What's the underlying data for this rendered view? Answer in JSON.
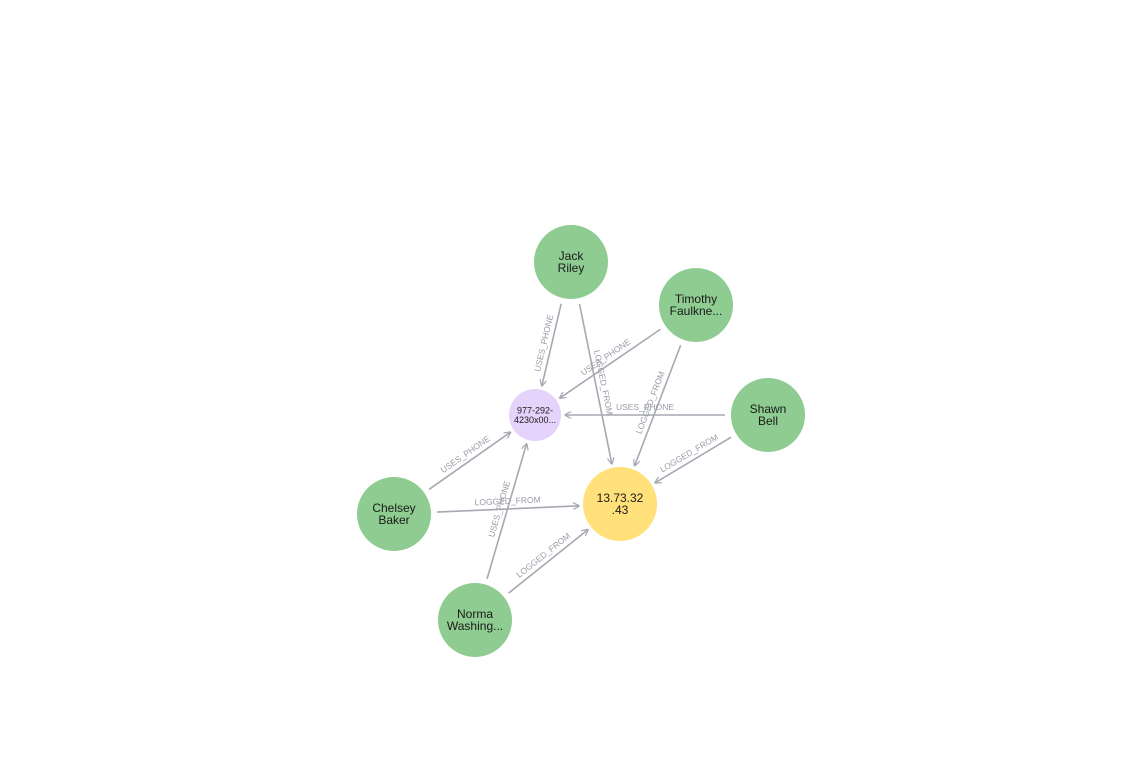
{
  "colors": {
    "person": "#8ecc91",
    "phone": "#e5d3fb",
    "ip": "#ffe07a",
    "edge": "#a6a9b2",
    "edge_label": "#9a9da6"
  },
  "nodes": [
    {
      "id": "jack",
      "type": "person",
      "lines": [
        "Jack",
        "Riley"
      ]
    },
    {
      "id": "timothy",
      "type": "person",
      "lines": [
        "Timothy",
        "Faulkne..."
      ]
    },
    {
      "id": "shawn",
      "type": "person",
      "lines": [
        "Shawn",
        "Bell"
      ]
    },
    {
      "id": "chelsey",
      "type": "person",
      "lines": [
        "Chelsey",
        "Baker"
      ]
    },
    {
      "id": "norma",
      "type": "person",
      "lines": [
        "Norma",
        "Washing..."
      ]
    },
    {
      "id": "phone",
      "type": "phone",
      "lines": [
        "977-292-",
        "4230x00..."
      ]
    },
    {
      "id": "ip",
      "type": "ip",
      "lines": [
        "13.73.32",
        ".43"
      ]
    }
  ],
  "edges": [
    {
      "from": "jack",
      "to": "phone",
      "label": "USES_PHONE"
    },
    {
      "from": "jack",
      "to": "ip",
      "label": "LOGGED_FROM"
    },
    {
      "from": "timothy",
      "to": "phone",
      "label": "USES_PHONE"
    },
    {
      "from": "timothy",
      "to": "ip",
      "label": "LOGGED_FROM"
    },
    {
      "from": "shawn",
      "to": "phone",
      "label": "USES_PHONE"
    },
    {
      "from": "shawn",
      "to": "ip",
      "label": "LOGGED_FROM"
    },
    {
      "from": "chelsey",
      "to": "phone",
      "label": "USES_PHONE"
    },
    {
      "from": "chelsey",
      "to": "ip",
      "label": "LOGGED_FROM"
    },
    {
      "from": "norma",
      "to": "phone",
      "label": "USES_PHONE"
    },
    {
      "from": "norma",
      "to": "ip",
      "label": "LOGGED_FROM"
    }
  ]
}
